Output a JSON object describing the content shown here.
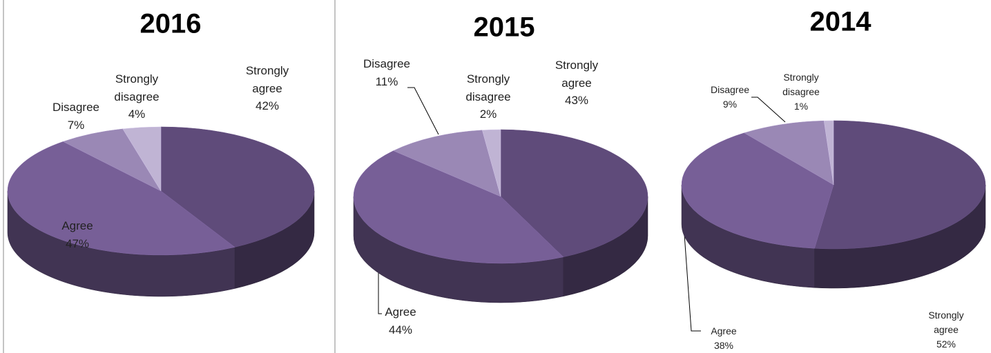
{
  "chart_data": [
    {
      "type": "pie",
      "title": "2016",
      "categories": [
        "Strongly agree",
        "Agree",
        "Disagree",
        "Strongly disagree"
      ],
      "values": [
        42,
        47,
        7,
        4
      ],
      "value_labels": [
        "42%",
        "47%",
        "7%",
        "4%"
      ],
      "colors": [
        "#5f4b7a",
        "#775f97",
        "#9a88b5",
        "#c0b4d4"
      ]
    },
    {
      "type": "pie",
      "title": "2015",
      "categories": [
        "Strongly agree",
        "Agree",
        "Disagree",
        "Strongly disagree"
      ],
      "values": [
        43,
        44,
        11,
        2
      ],
      "value_labels": [
        "43%",
        "44%",
        "11%",
        "2%"
      ],
      "colors": [
        "#5f4b7a",
        "#775f97",
        "#9a88b5",
        "#c0b4d4"
      ]
    },
    {
      "type": "pie",
      "title": "2014",
      "categories": [
        "Strongly agree",
        "Agree",
        "Disagree",
        "Strongly disagree"
      ],
      "values": [
        52,
        38,
        9,
        1
      ],
      "value_labels": [
        "52%",
        "38%",
        "9%",
        "1%"
      ],
      "colors": [
        "#5f4b7a",
        "#775f97",
        "#9a88b5",
        "#c0b4d4"
      ]
    }
  ]
}
